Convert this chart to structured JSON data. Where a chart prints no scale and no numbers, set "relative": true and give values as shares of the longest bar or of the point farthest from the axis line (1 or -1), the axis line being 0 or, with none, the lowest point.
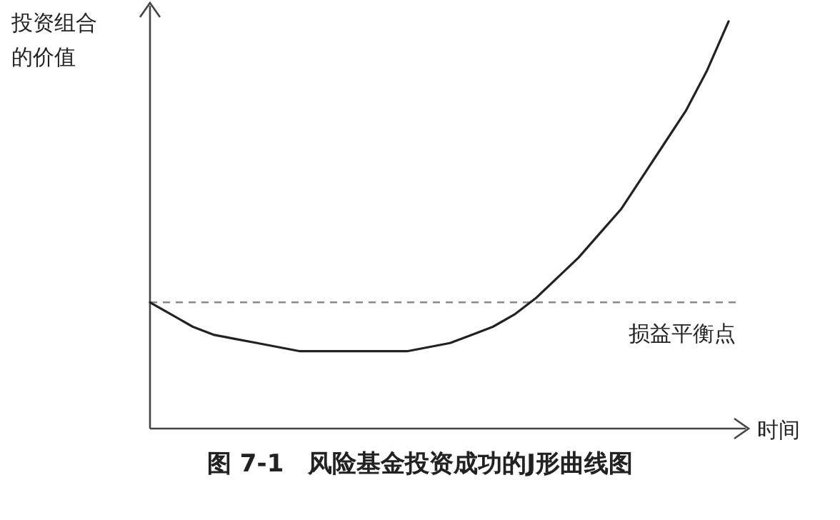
{
  "chart_data": {
    "type": "line",
    "title": "图 7-1　风险基金投资成功的J形曲线图",
    "xlabel": "时间",
    "ylabel": "投资组合的价值",
    "relative": true,
    "color": "#222222",
    "line_style": "solid",
    "categories": [
      null,
      null,
      null,
      null,
      null,
      null,
      null,
      null,
      null,
      null,
      null,
      null,
      null,
      null,
      null,
      null,
      null,
      null,
      null,
      null,
      null,
      null,
      null,
      null,
      null,
      null,
      null,
      null
    ],
    "values": [
      0.31,
      0.28,
      0.25,
      0.23,
      0.22,
      0.21,
      0.2,
      0.19,
      0.19,
      0.19,
      0.19,
      0.19,
      0.19,
      0.2,
      0.21,
      0.23,
      0.25,
      0.28,
      0.32,
      0.37,
      0.42,
      0.48,
      0.54,
      0.62,
      0.7,
      0.78,
      0.88,
      1
    ],
    "ref_lines": [
      {
        "axis": "y",
        "value": 0.31,
        "label": "损益平衡点",
        "color": "#888888",
        "line_style": "dashed"
      }
    ]
  }
}
